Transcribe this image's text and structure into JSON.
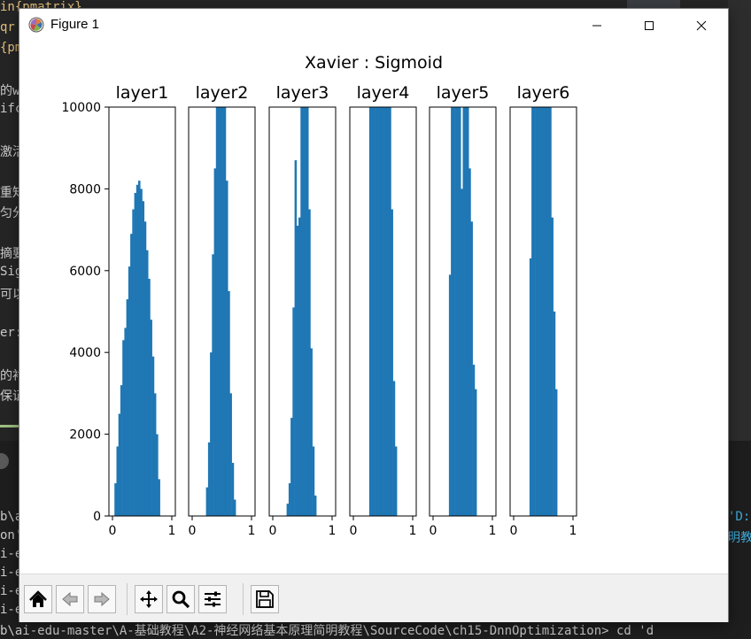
{
  "window": {
    "title": "Figure 1",
    "icons": {
      "app": "matplotlib-icon",
      "minimize": "minimize-icon",
      "maximize": "maximize-icon",
      "close": "close-icon"
    }
  },
  "background": {
    "code_lines": [
      "in{pmatrix}",
      "qr",
      "{pm",
      "",
      "的w",
      "ifc",
      "",
      "激活",
      "",
      "重知",
      "匀分",
      "",
      "摘要",
      "Sig",
      "可以",
      "",
      "er:",
      "",
      "的衬",
      "保证"
    ],
    "terminal_lines": [
      "b\\ai",
      "on'",
      "i-e",
      "i-e",
      "i-e",
      "i-e",
      "b\\ai-edu-master\\A-基础教程\\A2-神经网络基本原理简明教程\\SourceCode\\ch15-DnnOptimization>  cd 'd"
    ],
    "terminal_right": [
      "'D:",
      "明教"
    ]
  },
  "toolbar": {
    "buttons": [
      {
        "name": "home-button",
        "icon": "home-icon"
      },
      {
        "name": "back-button",
        "icon": "arrow-left-icon"
      },
      {
        "name": "forward-button",
        "icon": "arrow-right-icon"
      },
      {
        "name": "pan-button",
        "icon": "move-icon"
      },
      {
        "name": "zoom-button",
        "icon": "magnifier-icon"
      },
      {
        "name": "configure-subplots-button",
        "icon": "sliders-icon"
      },
      {
        "name": "save-button",
        "icon": "floppy-disk-icon"
      }
    ]
  },
  "chart_data": {
    "type": "bar",
    "title": "Xavier : Sigmoid",
    "bar_color": "#1f77b4",
    "ylim": [
      0,
      10000
    ],
    "yticks": [
      "0",
      "2000",
      "4000",
      "6000",
      "8000",
      "10000"
    ],
    "xlim": [
      0,
      1
    ],
    "xticks": [
      "0",
      "1"
    ],
    "bin_width": 0.033333,
    "subplots": [
      {
        "title": "layer1",
        "bins": [
          [
            0.033,
            800
          ],
          [
            0.067,
            1700
          ],
          [
            0.1,
            2500
          ],
          [
            0.133,
            3200
          ],
          [
            0.167,
            4300
          ],
          [
            0.2,
            4600
          ],
          [
            0.233,
            5300
          ],
          [
            0.267,
            6100
          ],
          [
            0.3,
            6900
          ],
          [
            0.333,
            7500
          ],
          [
            0.367,
            7900
          ],
          [
            0.4,
            8100
          ],
          [
            0.433,
            8200
          ],
          [
            0.467,
            8000
          ],
          [
            0.5,
            7700
          ],
          [
            0.533,
            7200
          ],
          [
            0.567,
            6500
          ],
          [
            0.6,
            5800
          ],
          [
            0.633,
            4800
          ],
          [
            0.667,
            3900
          ],
          [
            0.7,
            3000
          ],
          [
            0.733,
            2000
          ],
          [
            0.767,
            900
          ],
          [
            0.8,
            0
          ]
        ]
      },
      {
        "title": "layer2",
        "bins": [
          [
            0.233,
            700
          ],
          [
            0.267,
            1800
          ],
          [
            0.3,
            4000
          ],
          [
            0.333,
            6400
          ],
          [
            0.367,
            8500
          ],
          [
            0.4,
            10000
          ],
          [
            0.433,
            10000
          ],
          [
            0.467,
            10000
          ],
          [
            0.5,
            10000
          ],
          [
            0.533,
            10000
          ],
          [
            0.567,
            8200
          ],
          [
            0.6,
            5500
          ],
          [
            0.633,
            3000
          ],
          [
            0.667,
            1300
          ],
          [
            0.7,
            400
          ]
        ]
      },
      {
        "title": "layer3",
        "bins": [
          [
            0.233,
            300
          ],
          [
            0.267,
            800
          ],
          [
            0.3,
            2400
          ],
          [
            0.333,
            5100
          ],
          [
            0.367,
            8700
          ],
          [
            0.4,
            7100
          ],
          [
            0.433,
            7300
          ],
          [
            0.467,
            10000
          ],
          [
            0.5,
            10000
          ],
          [
            0.533,
            10000
          ],
          [
            0.567,
            10000
          ],
          [
            0.6,
            7500
          ],
          [
            0.633,
            4100
          ],
          [
            0.667,
            1700
          ],
          [
            0.7,
            500
          ]
        ]
      },
      {
        "title": "layer4",
        "bins": [
          [
            0.267,
            10000
          ],
          [
            0.3,
            10000
          ],
          [
            0.333,
            10000
          ],
          [
            0.367,
            10000
          ],
          [
            0.4,
            10000
          ],
          [
            0.433,
            10000
          ],
          [
            0.467,
            10000
          ],
          [
            0.5,
            10000
          ],
          [
            0.533,
            10000
          ],
          [
            0.567,
            10000
          ],
          [
            0.6,
            10000
          ],
          [
            0.633,
            7500
          ],
          [
            0.667,
            3300
          ],
          [
            0.7,
            1700
          ],
          [
            0.733,
            0
          ]
        ]
      },
      {
        "title": "layer5",
        "bins": [
          [
            0.267,
            5900
          ],
          [
            0.3,
            10000
          ],
          [
            0.333,
            10000
          ],
          [
            0.367,
            10000
          ],
          [
            0.4,
            10000
          ],
          [
            0.433,
            10000
          ],
          [
            0.467,
            8000
          ],
          [
            0.5,
            10000
          ],
          [
            0.533,
            10000
          ],
          [
            0.567,
            10000
          ],
          [
            0.6,
            8500
          ],
          [
            0.633,
            7200
          ],
          [
            0.667,
            3700
          ],
          [
            0.7,
            3100
          ],
          [
            0.733,
            0
          ]
        ]
      },
      {
        "title": "layer6",
        "bins": [
          [
            0.267,
            6300
          ],
          [
            0.3,
            10000
          ],
          [
            0.333,
            10000
          ],
          [
            0.367,
            10000
          ],
          [
            0.4,
            10000
          ],
          [
            0.433,
            10000
          ],
          [
            0.467,
            10000
          ],
          [
            0.5,
            10000
          ],
          [
            0.533,
            10000
          ],
          [
            0.567,
            10000
          ],
          [
            0.6,
            10000
          ],
          [
            0.633,
            7300
          ],
          [
            0.667,
            5000
          ],
          [
            0.7,
            3100
          ],
          [
            0.733,
            0
          ]
        ]
      }
    ]
  }
}
